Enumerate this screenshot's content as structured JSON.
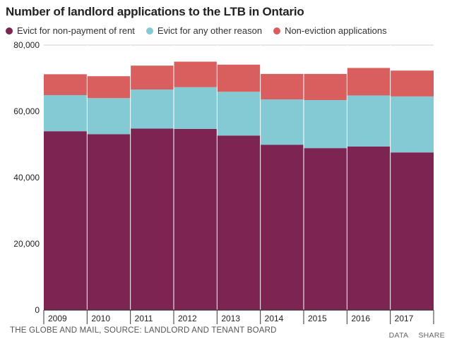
{
  "title": "Number of landlord applications to the LTB in Ontario",
  "legend": [
    {
      "label": "Evict for non-payment of rent",
      "color": "#7c2452"
    },
    {
      "label": "Evict for any other reason",
      "color": "#84cad4"
    },
    {
      "label": "Non-eviction applications",
      "color": "#d95e5e"
    }
  ],
  "source": "THE GLOBE AND MAIL, SOURCE: LANDLORD AND TENANT BOARD",
  "footer": {
    "data_label": "DATA",
    "share_label": "SHARE"
  },
  "chart_data": {
    "type": "bar",
    "stacked": true,
    "title": "Number of landlord applications to the LTB in Ontario",
    "categories": [
      "2009",
      "2010",
      "2011",
      "2012",
      "2013",
      "2014",
      "2015",
      "2016",
      "2017"
    ],
    "series": [
      {
        "name": "Evict for non-payment of rent",
        "color": "#7c2452",
        "values": [
          54000,
          53100,
          54800,
          54700,
          52700,
          49900,
          48900,
          49400,
          47600
        ]
      },
      {
        "name": "Evict for any other reason",
        "color": "#84cad4",
        "values": [
          10900,
          10900,
          11800,
          12600,
          13200,
          13700,
          14500,
          15400,
          16900
        ]
      },
      {
        "name": "Non-eviction applications",
        "color": "#d95e5e",
        "values": [
          6300,
          6600,
          7200,
          7700,
          8200,
          7700,
          7900,
          8300,
          7800
        ]
      }
    ],
    "yticks": [
      0,
      20000,
      40000,
      60000,
      80000
    ],
    "ytick_labels": [
      "0",
      "20,000",
      "40,000",
      "60,000",
      "80,000"
    ],
    "ylim": [
      0,
      80000
    ],
    "xlabel": "",
    "ylabel": "",
    "grid": true
  }
}
